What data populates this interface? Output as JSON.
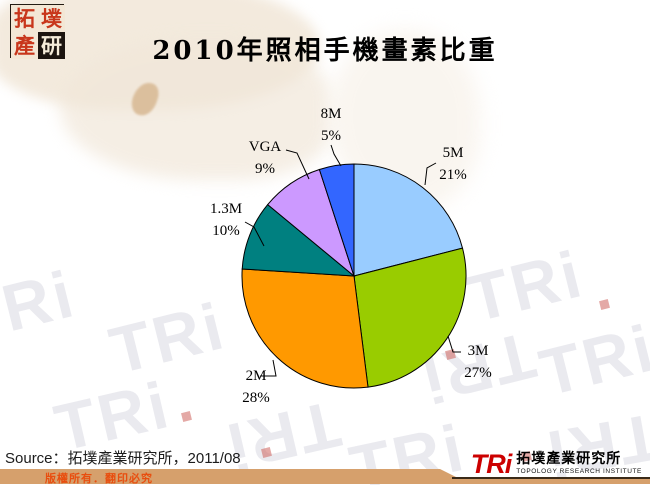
{
  "page": {
    "title": "2010年照相手機畫素比重",
    "source_line": "Source：拓墣產業研究所，2011/08",
    "footer_notice": "版權所有．翻印必究",
    "watermark_text": "TRi"
  },
  "logo_seal": {
    "chars": [
      "拓",
      "墣",
      "產",
      "研"
    ]
  },
  "tri_logo": {
    "mark": "TRi",
    "company": "拓墣產業研究所",
    "english": "TOPOLOGY RESEARCH INSTITUTE",
    "mark_color": "#CC0000"
  },
  "colors": {
    "footer_bar": "#D6A06C",
    "footer_text": "#E84E0F",
    "seal_red": "#C8361B",
    "slice_outline": "#000000"
  },
  "chart_data": {
    "type": "pie",
    "title": "2010年照相手機畫素比重",
    "unit": "percent of camera phones by sensor resolution",
    "direction": "clockwise",
    "start_angle_deg": 0,
    "legend": "none",
    "labels_outside": true,
    "slices": [
      {
        "label": "5M",
        "value": 21,
        "pct_label": "21%",
        "color": "#99CCFF"
      },
      {
        "label": "3M",
        "value": 27,
        "pct_label": "27%",
        "color": "#99CC00"
      },
      {
        "label": "2M",
        "value": 28,
        "pct_label": "28%",
        "color": "#FF9900"
      },
      {
        "label": "1.3M",
        "value": 10,
        "pct_label": "10%",
        "color": "#008080"
      },
      {
        "label": "VGA",
        "value": 9,
        "pct_label": "9%",
        "color": "#CC99FF"
      },
      {
        "label": "8M",
        "value": 5,
        "pct_label": "5%",
        "color": "#3366FF"
      }
    ]
  }
}
